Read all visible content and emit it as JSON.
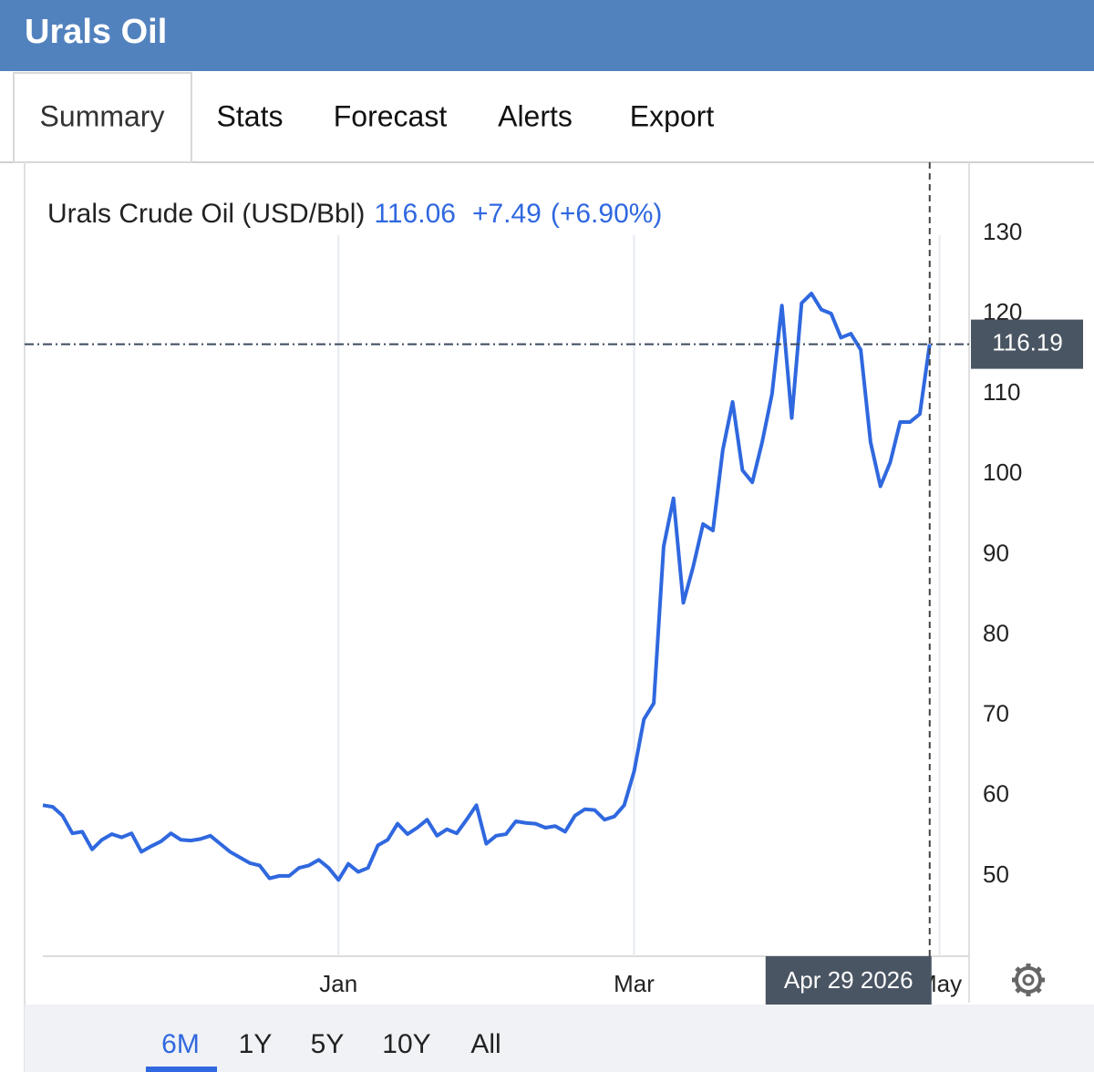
{
  "header": {
    "title": "Urals Oil"
  },
  "tabs": [
    "Summary",
    "Stats",
    "Forecast",
    "Alerts",
    "Export"
  ],
  "quote": {
    "price": "116.06",
    "change": "+7.49",
    "change_pct": "(+6.90%)"
  },
  "chart_data": {
    "type": "line",
    "categories": [
      null,
      null,
      null,
      null,
      null,
      null,
      null,
      null,
      null,
      null,
      null,
      null,
      null,
      null,
      null,
      null,
      null,
      null,
      null,
      null,
      null,
      null,
      null,
      null,
      null,
      null,
      null,
      null,
      null,
      null,
      "Jan",
      null,
      null,
      null,
      null,
      null,
      null,
      null,
      null,
      null,
      null,
      null,
      null,
      null,
      null,
      null,
      null,
      null,
      null,
      null,
      null,
      null,
      null,
      null,
      null,
      null,
      null,
      null,
      null,
      null,
      "Mar",
      null,
      null,
      null,
      null,
      null,
      null,
      null,
      null,
      null,
      null,
      null,
      null,
      null,
      null,
      null,
      null,
      null,
      null,
      null,
      null,
      null,
      null,
      null,
      null,
      null,
      null,
      null,
      null,
      null,
      null,
      "May",
      null,
      null
    ],
    "series": [
      {
        "name": "Urals Crude Oil (USD/Bbl)",
        "color": "#2f68df",
        "values": [
          58.8,
          58.6,
          57.5,
          55.3,
          55.5,
          53.3,
          54.5,
          55.2,
          54.8,
          55.3,
          53.0,
          53.7,
          54.3,
          55.3,
          54.5,
          54.4,
          54.6,
          55.0,
          54.0,
          53.0,
          52.3,
          51.6,
          51.3,
          49.7,
          50.0,
          50.0,
          51.0,
          51.3,
          52.0,
          51.0,
          49.5,
          51.5,
          50.5,
          51.0,
          53.8,
          54.5,
          56.5,
          55.2,
          56.0,
          57.0,
          55.0,
          55.8,
          55.3,
          57.0,
          58.8,
          54.0,
          55.0,
          55.2,
          56.8,
          56.6,
          56.5,
          56.0,
          56.2,
          55.5,
          57.5,
          58.3,
          58.2,
          57.0,
          57.4,
          58.8,
          63.0,
          69.5,
          71.5,
          91.0,
          97.0,
          84.0,
          88.5,
          93.8,
          93.0,
          103.0,
          109.0,
          100.5,
          99.0,
          104.0,
          110.0,
          121.0,
          107.0,
          121.3,
          122.5,
          120.5,
          120.0,
          117.0,
          117.5,
          115.5,
          104.0,
          98.5,
          101.5,
          106.5,
          106.5,
          107.5,
          116.19,
          null,
          null,
          null
        ]
      }
    ],
    "ylim": [
      40,
      138
    ],
    "yticks": [
      50,
      60,
      70,
      80,
      90,
      100,
      110,
      120,
      130
    ],
    "xgrid": true,
    "crosshair_label": "Apr 29 2026"
  },
  "ranges": [
    "6M",
    "1Y",
    "5Y",
    "10Y",
    "All"
  ]
}
